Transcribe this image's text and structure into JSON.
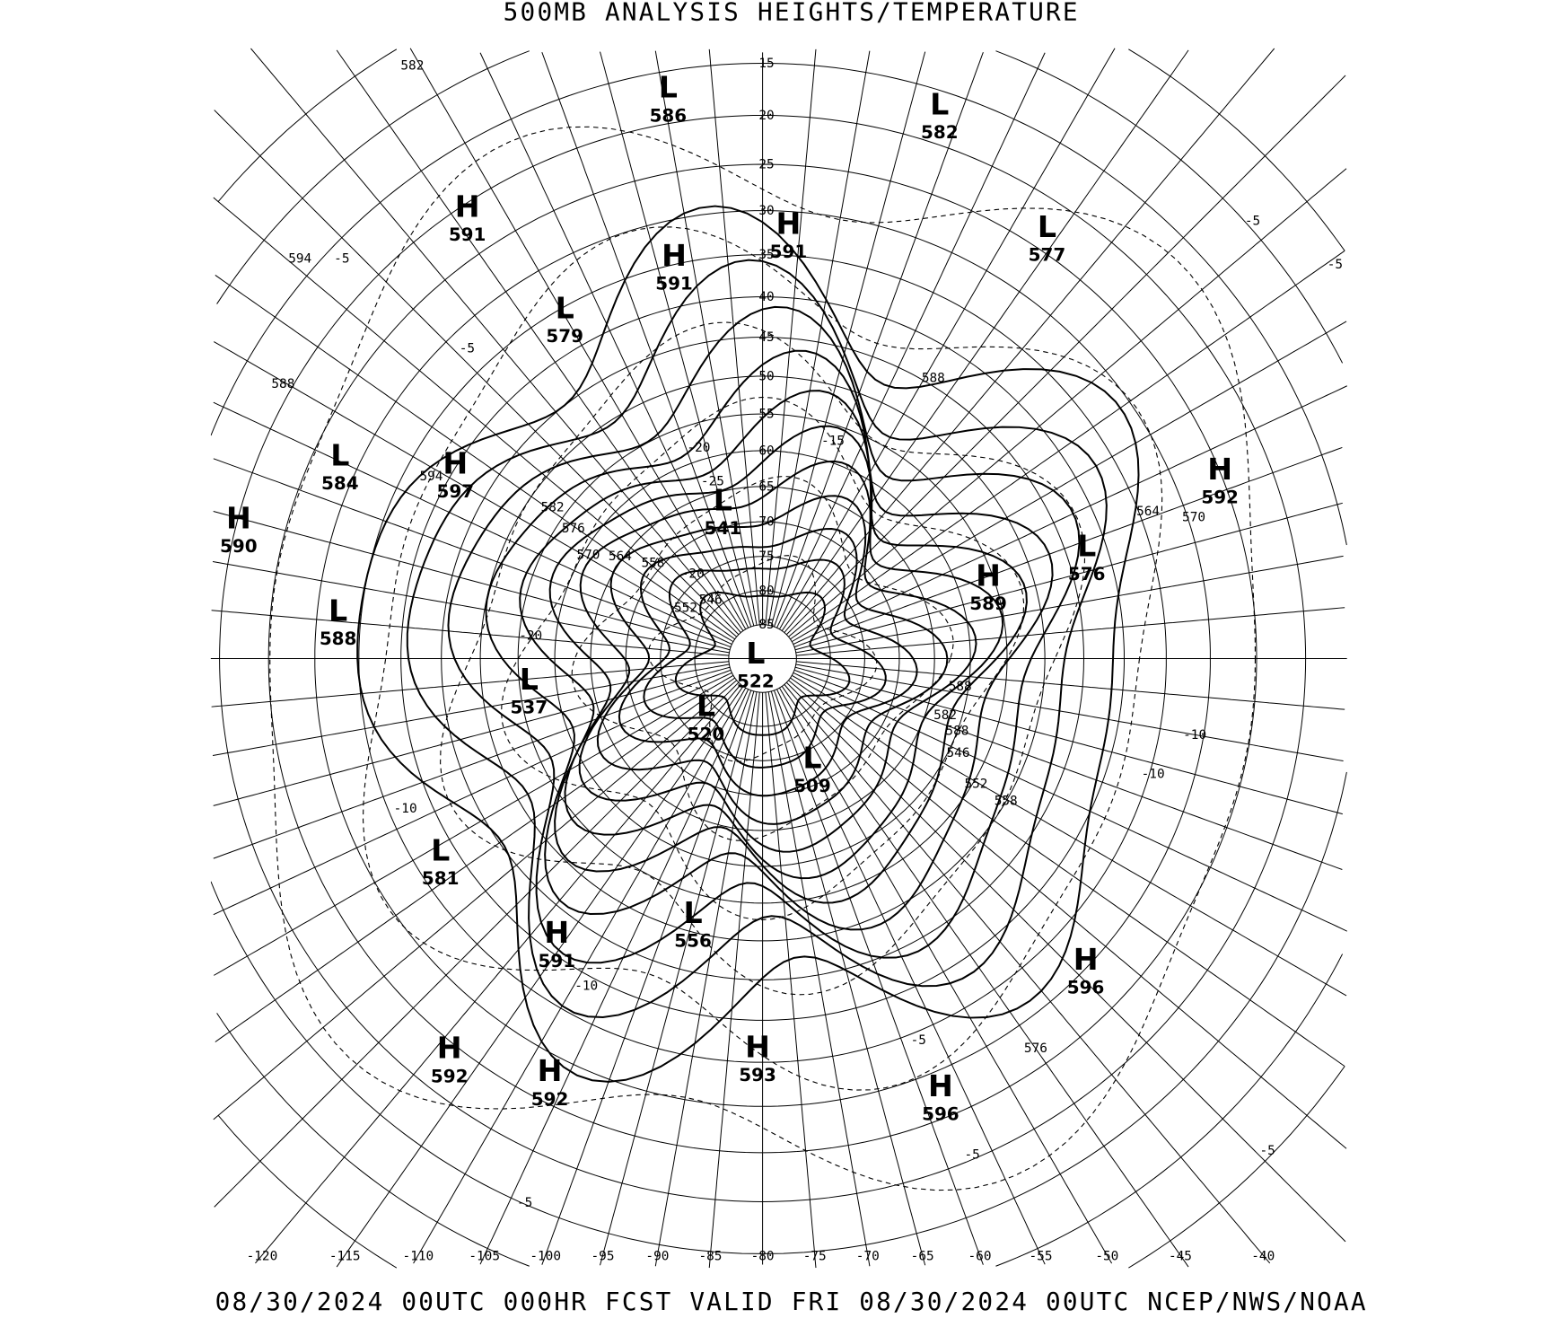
{
  "title": "500MB ANALYSIS  HEIGHTS/TEMPERATURE",
  "footer": "08/30/2024 00UTC 000HR FCST VALID FRI 08/30/2024 00UTC  NCEP/NWS/NOAA",
  "map": {
    "projection": "polar stereographic (north pole)",
    "line_color": "#000000",
    "background": "#ffffff",
    "latitude_labels": [
      "15",
      "20",
      "25",
      "30",
      "35",
      "40",
      "45",
      "50",
      "55",
      "60",
      "65",
      "70",
      "75",
      "80",
      "85"
    ],
    "longitude_labels": [
      "-120",
      "-115",
      "-110",
      "-105",
      "-100",
      "-95",
      "-90",
      "-85",
      "-80",
      "-75",
      "-70",
      "-65",
      "-60",
      "-55",
      "-50",
      "-45",
      "-40"
    ],
    "centers": [
      {
        "type": "L",
        "value": "586"
      },
      {
        "type": "L",
        "value": "582"
      },
      {
        "type": "H",
        "value": "591"
      },
      {
        "type": "H",
        "value": "591"
      },
      {
        "type": "H",
        "value": "591"
      },
      {
        "type": "L",
        "value": "577"
      },
      {
        "type": "L",
        "value": "579"
      },
      {
        "type": "L",
        "value": "584"
      },
      {
        "type": "H",
        "value": "597"
      },
      {
        "type": "H",
        "value": "590"
      },
      {
        "type": "L",
        "value": "541"
      },
      {
        "type": "H",
        "value": "592"
      },
      {
        "type": "L",
        "value": "576"
      },
      {
        "type": "H",
        "value": "589"
      },
      {
        "type": "L",
        "value": "588"
      },
      {
        "type": "L",
        "value": "537"
      },
      {
        "type": "L",
        "value": "522"
      },
      {
        "type": "L",
        "value": "520"
      },
      {
        "type": "L",
        "value": "509"
      },
      {
        "type": "L",
        "value": "581"
      },
      {
        "type": "L",
        "value": "556"
      },
      {
        "type": "H",
        "value": "591"
      },
      {
        "type": "H",
        "value": "596"
      },
      {
        "type": "H",
        "value": "592"
      },
      {
        "type": "H",
        "value": "592"
      },
      {
        "type": "H",
        "value": "593"
      },
      {
        "type": "H",
        "value": "596"
      }
    ],
    "contour_labels": [
      "588",
      "594",
      "582",
      "576",
      "570",
      "564",
      "558",
      "552",
      "546",
      "588",
      "588",
      "582",
      "588",
      "546",
      "552",
      "558",
      "564",
      "570",
      "576",
      "582",
      "594",
      "-5",
      "-5",
      "-5",
      "-5",
      "-10",
      "-10",
      "-10",
      "-15",
      "-20",
      "-20",
      "-20",
      "-25",
      "-5",
      "-10",
      "-5",
      "-5",
      "-5"
    ]
  }
}
